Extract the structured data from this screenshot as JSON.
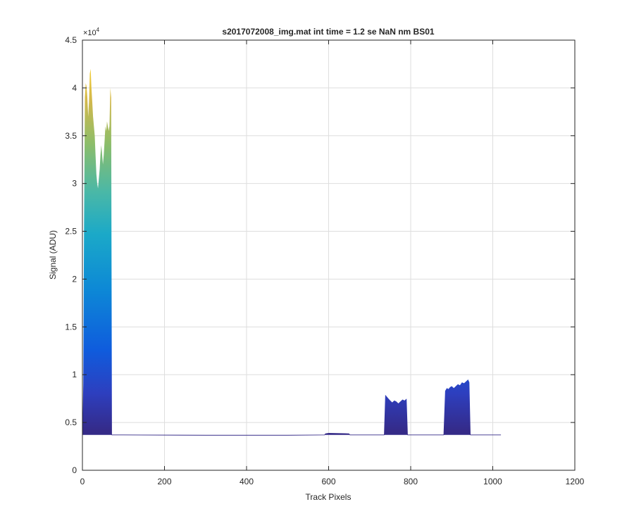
{
  "chart_data": {
    "type": "area",
    "title": "s2017072008_img.mat int time = 1.2 se  NaN nm BS01",
    "xlabel": "Track Pixels",
    "ylabel": "Signal (ADU)",
    "exponent_base": "×10",
    "exponent_power": "4",
    "xlim": [
      0,
      1200
    ],
    "ylim": [
      0,
      45000
    ],
    "xticks": [
      0,
      200,
      400,
      600,
      800,
      1000,
      1200
    ],
    "xtick_labels": [
      "0",
      "200",
      "400",
      "600",
      "800",
      "1000",
      "1200"
    ],
    "yticks": [
      0,
      5000,
      10000,
      15000,
      20000,
      25000,
      30000,
      35000,
      40000,
      45000
    ],
    "ytick_labels": [
      "0",
      "0.5",
      "1",
      "1.5",
      "2",
      "2.5",
      "3",
      "3.5",
      "4",
      "4.5"
    ],
    "grid": true,
    "baseline": 3700,
    "colormap": "parula",
    "colors": {
      "low": "#352a87",
      "mid_low": "#0f5cdd",
      "mid": "#1ba9c8",
      "mid_high": "#8cbd6a",
      "high": "#f9d130"
    },
    "x": [
      0,
      2,
      4,
      6,
      8,
      10,
      12,
      14,
      16,
      18,
      20,
      22,
      24,
      26,
      28,
      30,
      32,
      34,
      36,
      38,
      40,
      42,
      44,
      46,
      48,
      50,
      52,
      54,
      56,
      58,
      60,
      62,
      64,
      66,
      68,
      70,
      72,
      100,
      300,
      500,
      590,
      592,
      600,
      620,
      640,
      650,
      652,
      735,
      738,
      742,
      746,
      750,
      755,
      760,
      765,
      770,
      775,
      780,
      785,
      790,
      793,
      796,
      880,
      884,
      888,
      892,
      896,
      900,
      905,
      910,
      915,
      920,
      925,
      930,
      935,
      940,
      943,
      946,
      1020
    ],
    "values": [
      3800,
      9000,
      26000,
      39000,
      40500,
      40200,
      39000,
      37000,
      38500,
      41500,
      42000,
      40000,
      38500,
      37000,
      36000,
      35000,
      33000,
      31000,
      30000,
      29500,
      30500,
      31500,
      33000,
      34000,
      33000,
      32000,
      33000,
      34500,
      36000,
      35500,
      36500,
      36000,
      35500,
      36000,
      40000,
      39000,
      3700,
      3700,
      3650,
      3650,
      3700,
      3850,
      3900,
      3880,
      3870,
      3850,
      3700,
      3700,
      7900,
      7700,
      7500,
      7300,
      7100,
      7300,
      7200,
      7000,
      7200,
      7400,
      7300,
      7500,
      3700,
      3700,
      3700,
      8300,
      8600,
      8500,
      8700,
      8800,
      8600,
      8800,
      9000,
      8900,
      9200,
      9100,
      9300,
      9500,
      9200,
      3700,
      3700
    ]
  }
}
